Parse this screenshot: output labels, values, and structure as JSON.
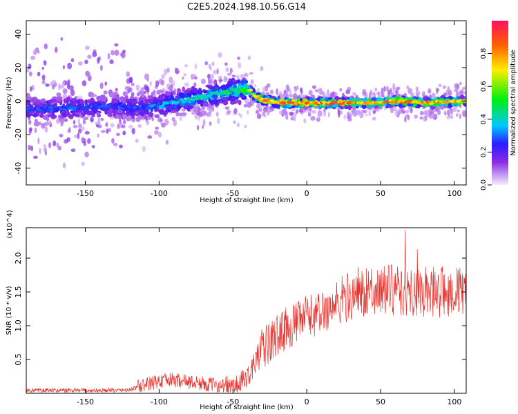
{
  "title": "C2E5.2024.198.10.56.G14",
  "colors": {
    "snr_line": "#e8302a",
    "axis": "#000000",
    "background": "#ffffff"
  },
  "chart_data": [
    {
      "type": "heatmap",
      "xlabel": "Height of straight line (km)",
      "ylabel": "Frequency (Hz)",
      "xlim": [
        -190,
        108
      ],
      "ylim": [
        -50,
        48
      ],
      "x_ticks": [
        -150,
        -100,
        -50,
        0,
        50,
        100
      ],
      "y_ticks": [
        -40,
        -20,
        0,
        20,
        40
      ],
      "colorbar": {
        "label": "Normalized spectral amplitude",
        "range": [
          0.0,
          1.0
        ],
        "ticks": [
          0.0,
          0.2,
          0.4,
          0.6,
          0.8
        ]
      },
      "ridge": {
        "x": [
          -190,
          -160,
          -130,
          -110,
          -90,
          -75,
          -60,
          -50,
          -42,
          -38,
          -35,
          -30,
          -20,
          -10,
          0,
          20,
          40,
          60,
          80,
          108
        ],
        "y": [
          -5,
          -4,
          -3,
          -4,
          -1,
          2,
          5,
          6,
          7,
          6,
          3,
          1,
          -1,
          -1,
          -1,
          -1,
          -1,
          0,
          -1,
          0
        ],
        "amplitude": [
          0.3,
          0.32,
          0.3,
          0.33,
          0.4,
          0.45,
          0.5,
          0.55,
          0.6,
          0.7,
          0.85,
          0.9,
          0.95,
          0.95,
          0.95,
          0.95,
          0.9,
          0.9,
          0.9,
          0.85
        ]
      }
    },
    {
      "type": "line",
      "xlabel": "Height of straight line (km)",
      "ylabel": "SNR (10 * v/v)",
      "y_multiplier": "(x10^4)",
      "xlim": [
        -190,
        108
      ],
      "ylim": [
        0,
        24500
      ],
      "x_ticks": [
        -150,
        -100,
        -50,
        0,
        50,
        100
      ],
      "y_ticks": [
        5000,
        10000,
        15000,
        20000
      ],
      "y_tick_labels": [
        "0.5",
        "1.0",
        "1.5",
        "2.0"
      ],
      "series": [
        {
          "x": [
            -190,
            -170,
            -150,
            -130,
            -120,
            -110,
            -100,
            -90,
            -80,
            -70,
            -60,
            -50,
            -45,
            -40,
            -35,
            -30,
            -25,
            -20,
            -15,
            -10,
            -5,
            0,
            5,
            10,
            15,
            20,
            25,
            30,
            35,
            40,
            45,
            50,
            55,
            60,
            70,
            80,
            90,
            100,
            108
          ],
          "values": [
            400,
            400,
            400,
            400,
            500,
            1200,
            1800,
            2000,
            1700,
            1400,
            1200,
            800,
            1500,
            2500,
            4500,
            6500,
            7500,
            8500,
            9500,
            10000,
            10500,
            11500,
            11500,
            12000,
            12500,
            13000,
            14000,
            14500,
            15000,
            15000,
            15500,
            15000,
            15500,
            15000,
            15000,
            15000,
            15000,
            15000,
            15000
          ]
        }
      ]
    }
  ]
}
